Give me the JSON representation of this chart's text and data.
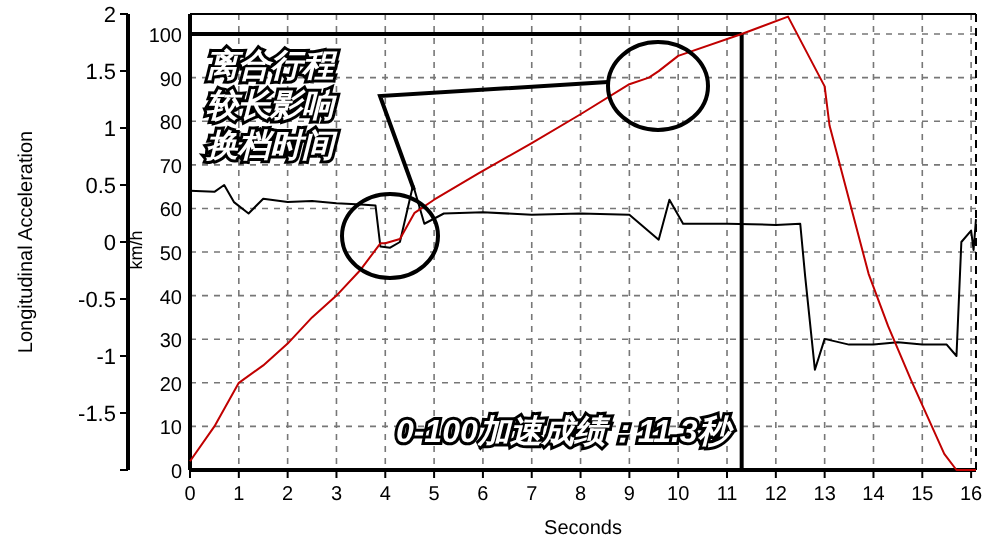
{
  "chart_data": {
    "type": "line",
    "xlabel": "Seconds",
    "ylabel": "Longitudinal Acceleration",
    "y2label": "km/h",
    "x": [
      0,
      0.5,
      0.7,
      0.9,
      1.2,
      1.5,
      2,
      2.5,
      3,
      3.5,
      3.8,
      3.9,
      4.1,
      4.3,
      4.57,
      4.8,
      5.2,
      6,
      7,
      8,
      9,
      9.6,
      9.82,
      10.1,
      11,
      12,
      12.5,
      12.6,
      12.8,
      13,
      13.5,
      14,
      14.5,
      15,
      15.5,
      15.7,
      15.8,
      16,
      16.05,
      16.1
    ],
    "series": [
      {
        "name": null,
        "color": "#000000",
        "values": [
          0.45,
          0.44,
          0.5,
          0.35,
          0.25,
          0.38,
          0.35,
          0.36,
          0.34,
          0.33,
          0.32,
          -0.04,
          -0.05,
          0.0,
          0.5,
          0.16,
          0.25,
          0.26,
          0.24,
          0.25,
          0.24,
          0.02,
          0.37,
          0.16,
          0.16,
          0.15,
          0.16,
          -0.3,
          -1.12,
          -0.85,
          -0.9,
          -0.9,
          -0.88,
          -0.9,
          -0.9,
          -1.0,
          0.0,
          0.1,
          -0.07,
          0.2
        ]
      },
      {
        "name": null,
        "color": "#c00000",
        "axis": "y2",
        "x": [
          0,
          0.5,
          1,
          1.5,
          2,
          2.5,
          3,
          3.5,
          3.9,
          4.0,
          4.3,
          4.6,
          5,
          5.9,
          7,
          8,
          9,
          9.4,
          9.6,
          10,
          11.3,
          12.25,
          13,
          13.1,
          13.9,
          14.3,
          14.77,
          15.45,
          15.7,
          16.1
        ],
        "values": [
          2,
          10,
          20,
          24,
          29,
          35,
          40,
          46,
          52,
          52,
          53,
          59,
          62,
          68,
          75,
          81.6,
          88.5,
          90,
          91.5,
          95,
          100,
          104,
          88,
          79,
          45,
          33,
          20.6,
          3.7,
          0,
          0
        ]
      }
    ],
    "xlim": [
      0,
      16.1
    ],
    "xticks": [
      0,
      1,
      2,
      3,
      4,
      5,
      6,
      7,
      8,
      9,
      10,
      11,
      12,
      13,
      14,
      15,
      16
    ],
    "ylim": [
      -2,
      2
    ],
    "yticks": [
      {
        "value": -2,
        "label": null
      },
      -1.5,
      -1,
      -0.5,
      0,
      0.5,
      1,
      1.5,
      2
    ],
    "y2lim": [
      0,
      104.6
    ],
    "y2ticks": [
      0,
      10,
      20,
      30,
      40,
      50,
      60,
      70,
      80,
      90,
      100
    ],
    "grid": true,
    "line_style": "solid",
    "ref_lines": [
      {
        "axis": "x",
        "value": 11.3,
        "label": null
      },
      {
        "axis": "y2",
        "value": 100,
        "label": null
      }
    ],
    "annotations": [
      "离合行程较长影响换档时间",
      "0-100加速成绩：11.3秒"
    ]
  }
}
